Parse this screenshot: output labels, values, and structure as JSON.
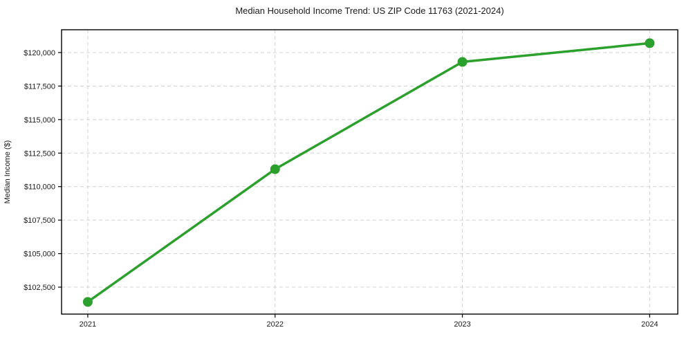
{
  "chart_data": {
    "type": "line",
    "title": "Median Household Income Trend: US ZIP Code 11763 (2021-2024)",
    "xlabel": "",
    "ylabel": "Median Income ($)",
    "x": [
      2021,
      2022,
      2023,
      2024
    ],
    "x_tick_labels": [
      "2021",
      "2022",
      "2023",
      "2024"
    ],
    "series": [
      {
        "name": "Median Household Income",
        "values": [
          101400,
          111300,
          119300,
          120700
        ],
        "color": "#2ca02c",
        "marker": "circle"
      }
    ],
    "y_ticks": [
      102500,
      105000,
      107500,
      110000,
      112500,
      115000,
      117500,
      120000
    ],
    "y_tick_labels": [
      "$102,500",
      "$105,000",
      "$107,500",
      "$110,000",
      "$112,500",
      "$115,000",
      "$117,500",
      "$120,000"
    ],
    "xlim": [
      2020.86,
      2024.15
    ],
    "ylim": [
      100490,
      121700
    ],
    "grid": true,
    "grid_style": "dashed",
    "legend_position": "none"
  },
  "colors": {
    "line": "#2ca02c",
    "grid": "#d0d0d0",
    "spine": "#000000",
    "tick": "#000000",
    "text": "#1a1a1a",
    "background": "#ffffff"
  }
}
